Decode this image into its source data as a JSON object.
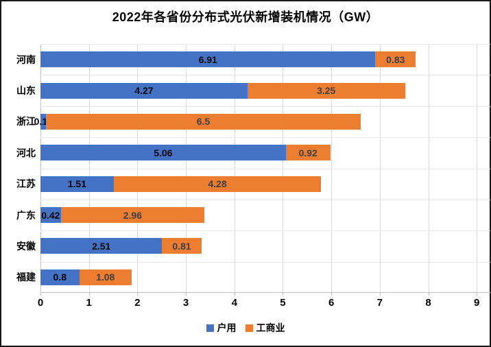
{
  "title": "2022年各省份分布式光伏新增装机情况（GW）",
  "chart_data": {
    "type": "bar",
    "orientation": "horizontal",
    "stacked": true,
    "title": "2022年各省份分布式光伏新增装机情况（GW）",
    "categories": [
      "河南",
      "山东",
      "浙江",
      "河北",
      "江苏",
      "广东",
      "安徽",
      "福建"
    ],
    "series": [
      {
        "name": "户用",
        "color": "#4472C4",
        "label_color": "#000000",
        "values": [
          6.91,
          4.27,
          0.11,
          5.06,
          1.51,
          0.42,
          2.51,
          0.8
        ]
      },
      {
        "name": "工商业",
        "color": "#ED7D31",
        "label_color": "#3F3F3F",
        "values": [
          0.83,
          3.25,
          6.5,
          0.92,
          4.28,
          2.96,
          0.81,
          1.08
        ]
      }
    ],
    "xlabel": "",
    "ylabel": "",
    "x_ticks": [
      0,
      1,
      2,
      3,
      4,
      5,
      6,
      7,
      8,
      9
    ],
    "xlim": [
      0,
      9.28
    ],
    "grid": "vertical-major",
    "gridline_color": "#D9D9D9",
    "legend_position": "bottom"
  },
  "legend": {
    "items": [
      {
        "label": "户用",
        "color": "#4472C4"
      },
      {
        "label": "工商业",
        "color": "#ED7D31"
      }
    ]
  }
}
